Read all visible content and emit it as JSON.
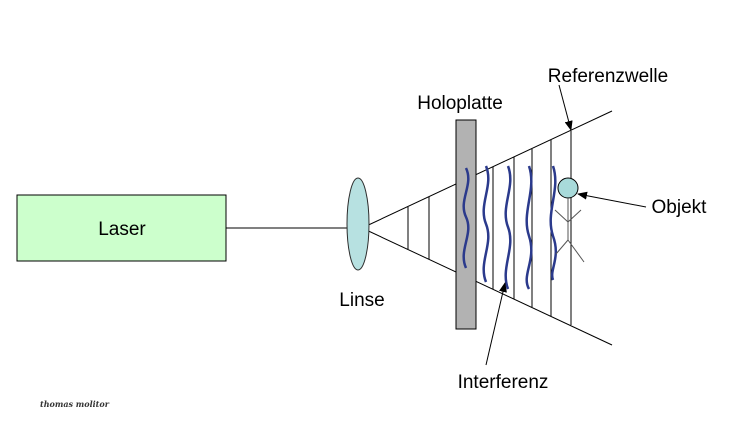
{
  "labels": {
    "laser": "Laser",
    "linse": "Linse",
    "holoplatte": "Holoplatte",
    "referenzwelle": "Referenzwelle",
    "objekt": "Objekt",
    "interferenz": "Interferenz",
    "credit": "thomas molitor"
  },
  "colors": {
    "laser_fill": "#ccffcc",
    "lens_fill": "#b7e1e1",
    "plate_fill": "#b2b2b2",
    "wave_stroke": "#2b3a8c",
    "object_fill": "#a8dada"
  }
}
